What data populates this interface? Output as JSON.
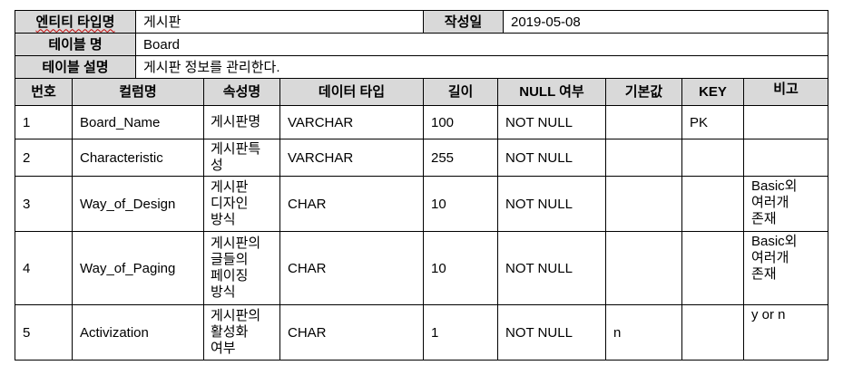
{
  "meta": {
    "entity_type_label": "엔티티 타입명",
    "entity_type_value": "게시판",
    "created_label": "작성일",
    "created_value": "2019-05-08",
    "table_name_label": "테이블 명",
    "table_name_value": "Board",
    "table_desc_label": "테이블 설명",
    "table_desc_value": "게시판 정보를 관리한다."
  },
  "columns": [
    "번호",
    "컬럼명",
    "속성명",
    "데이터 타입",
    "길이",
    "NULL 여부",
    "기본값",
    "KEY",
    "비고"
  ],
  "rows": [
    {
      "no": "1",
      "column": "Board_Name",
      "attr": "게시판명",
      "type": "VARCHAR",
      "length": "100",
      "nullable": "NOT NULL",
      "default": "",
      "key": "PK",
      "note": ""
    },
    {
      "no": "2",
      "column": "Characteristic",
      "attr": "게시판특\n성",
      "type": "VARCHAR",
      "length": "255",
      "nullable": "NOT NULL",
      "default": "",
      "key": "",
      "note": ""
    },
    {
      "no": "3",
      "column": "Way_of_Design",
      "attr": "게시판\n디자인\n방식",
      "type": "CHAR",
      "length": "10",
      "nullable": "NOT NULL",
      "default": "",
      "key": "",
      "note": "Basic외\n여러개\n존재"
    },
    {
      "no": "4",
      "column": "Way_of_Paging",
      "attr": "게시판의\n글들의\n페이징\n방식",
      "type": "CHAR",
      "length": "10",
      "nullable": "NOT NULL",
      "default": "",
      "key": "",
      "note": "Basic외\n여러개\n존재"
    },
    {
      "no": "5",
      "column": "Activization",
      "attr": "게시판의\n활성화\n여부",
      "type": "CHAR",
      "length": "1",
      "nullable": "NOT NULL",
      "default": "n",
      "key": "",
      "note": "y or n"
    }
  ]
}
